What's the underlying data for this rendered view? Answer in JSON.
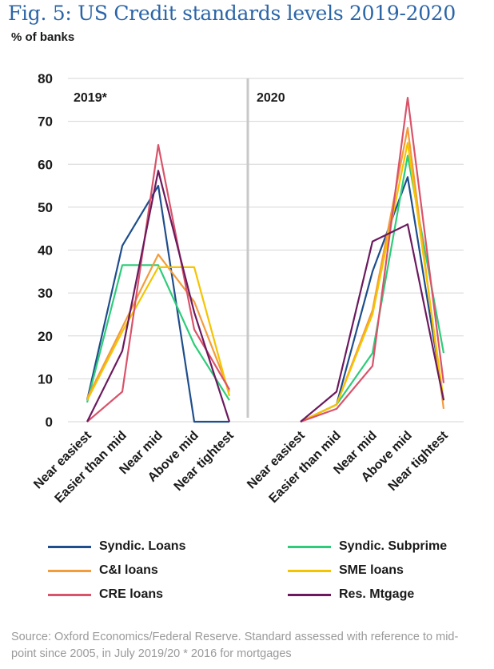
{
  "title": "Fig. 5: US Credit standards levels 2019-2020",
  "subtitle": "% of banks",
  "source": "Source: Oxford Economics/Federal Reserve. Standard assessed with reference to mid-point since 2005, in July 2019/20 * 2016 for mortgages",
  "chart_data": {
    "type": "line",
    "ylim": [
      0,
      80
    ],
    "yticks": [
      "0",
      "10",
      "20",
      "30",
      "40",
      "50",
      "60",
      "70",
      "80"
    ],
    "grid": true,
    "legend_position": "bottom",
    "categories": [
      "Near easiest",
      "Easier than mid",
      "Near mid",
      "Above mid",
      "Near tightest"
    ],
    "panels": [
      {
        "label": "2019*",
        "series": [
          {
            "name": "Syndic. Loans",
            "color": "#1f4e8c",
            "values": [
              5,
              41,
              55,
              0,
              0
            ]
          },
          {
            "name": "Syndic. Subprime",
            "color": "#2ecc7a",
            "values": [
              4.5,
              36.5,
              36.5,
              18,
              5
            ]
          },
          {
            "name": "C&I loans",
            "color": "#f39c3c",
            "values": [
              5.5,
              22,
              39,
              28,
              7
            ]
          },
          {
            "name": "SME loans",
            "color": "#f5c400",
            "values": [
              5,
              21,
              36,
              36,
              6
            ]
          },
          {
            "name": "CRE loans",
            "color": "#d9536a",
            "values": [
              0,
              7,
              64.5,
              21.5,
              7.5
            ]
          },
          {
            "name": "Res. Mtgage",
            "color": "#6b1a5e",
            "values": [
              0,
              16.5,
              58.5,
              25.5,
              0
            ]
          }
        ]
      },
      {
        "label": "2020",
        "series": [
          {
            "name": "Syndic. Loans",
            "color": "#1f4e8c",
            "values": [
              0,
              4,
              35,
              57,
              5
            ]
          },
          {
            "name": "Syndic. Subprime",
            "color": "#2ecc7a",
            "values": [
              0,
              4,
              16,
              62,
              16
            ]
          },
          {
            "name": "C&I loans",
            "color": "#f39c3c",
            "values": [
              0,
              4,
              26,
              68.5,
              3
            ]
          },
          {
            "name": "SME loans",
            "color": "#f5c400",
            "values": [
              0,
              4,
              25,
              65,
              5
            ]
          },
          {
            "name": "CRE loans",
            "color": "#d9536a",
            "values": [
              0,
              3,
              13,
              75.5,
              9
            ]
          },
          {
            "name": "Res. Mtgage",
            "color": "#6b1a5e",
            "values": [
              0,
              7,
              42,
              46,
              5
            ]
          }
        ]
      }
    ]
  },
  "legend": [
    {
      "name": "Syndic. Loans",
      "color": "#1f4e8c"
    },
    {
      "name": "Syndic. Subprime",
      "color": "#2ecc7a"
    },
    {
      "name": "C&I loans",
      "color": "#f39c3c"
    },
    {
      "name": "SME loans",
      "color": "#f5c400"
    },
    {
      "name": "CRE loans",
      "color": "#d9536a"
    },
    {
      "name": "Res. Mtgage",
      "color": "#6b1a5e"
    }
  ]
}
